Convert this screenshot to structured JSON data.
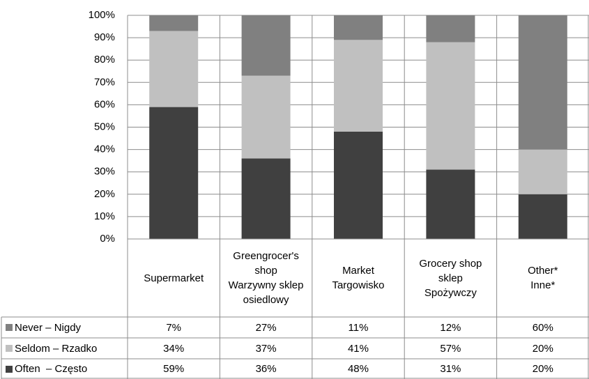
{
  "chart_data": {
    "type": "stacked_bar",
    "categories": [
      "Supermarket",
      "Greengrocer's\nshop\nWarzywny sklep\nosiedlowy",
      "Market\nTargowisko",
      "Grocery shop\nsklep\nSpożywczy",
      "Other*\nInne*"
    ],
    "series": [
      {
        "name": "Never – Nigdy",
        "color": "#808080",
        "values": [
          7,
          27,
          11,
          12,
          60
        ],
        "value_labels": [
          "7%",
          "27%",
          "11%",
          "12%",
          "60%"
        ]
      },
      {
        "name": "Seldom – Rzadko",
        "color": "#c0c0c0",
        "values": [
          34,
          37,
          41,
          57,
          20
        ],
        "value_labels": [
          "34%",
          "37%",
          "41%",
          "57%",
          "20%"
        ]
      },
      {
        "name": "Often  – Często",
        "color": "#404040",
        "values": [
          59,
          36,
          48,
          31,
          20
        ],
        "value_labels": [
          "59%",
          "36%",
          "48%",
          "31%",
          "20%"
        ]
      }
    ],
    "ylim": [
      0,
      100
    ],
    "yticks": [
      {
        "value": 0,
        "label": "0%"
      },
      {
        "value": 10,
        "label": "10%"
      },
      {
        "value": 20,
        "label": "20%"
      },
      {
        "value": 30,
        "label": "30%"
      },
      {
        "value": 40,
        "label": "40%"
      },
      {
        "value": 50,
        "label": "50%"
      },
      {
        "value": 60,
        "label": "60%"
      },
      {
        "value": 70,
        "label": "70%"
      },
      {
        "value": 80,
        "label": "80%"
      },
      {
        "value": 90,
        "label": "90%"
      },
      {
        "value": 100,
        "label": "100%"
      }
    ],
    "grid": true
  }
}
